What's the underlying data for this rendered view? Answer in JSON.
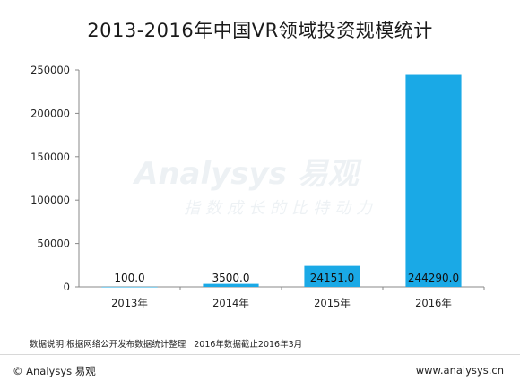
{
  "title": "2013-2016年中国VR领域投资规模统计",
  "watermark": {
    "brand": "Analysys 易观",
    "slogan": "指数成长的比特动力"
  },
  "colors": {
    "bar_fill": "#1aa9e6",
    "axis": "#888888"
  },
  "chart_data": {
    "type": "bar",
    "title": "2013-2016年中国VR领域投资规模统计",
    "xlabel": "",
    "ylabel": "",
    "categories": [
      "2013年",
      "2014年",
      "2015年",
      "2016年"
    ],
    "values": [
      100.0,
      3500.0,
      24151.0,
      244290.0
    ],
    "data_labels": [
      "100.0",
      "3500.0",
      "24151.0",
      "244290.0"
    ],
    "ylim": [
      0,
      250000
    ],
    "yticks": [
      0,
      50000,
      100000,
      150000,
      200000,
      250000
    ],
    "grid": false,
    "legend": "none"
  },
  "note": {
    "source": "数据说明:根据网络公开发布数据统计整理",
    "date": "2016年数据截止2016年3月"
  },
  "footer": {
    "copyright": "© Analysys 易观",
    "url": "www.analysys.cn"
  }
}
